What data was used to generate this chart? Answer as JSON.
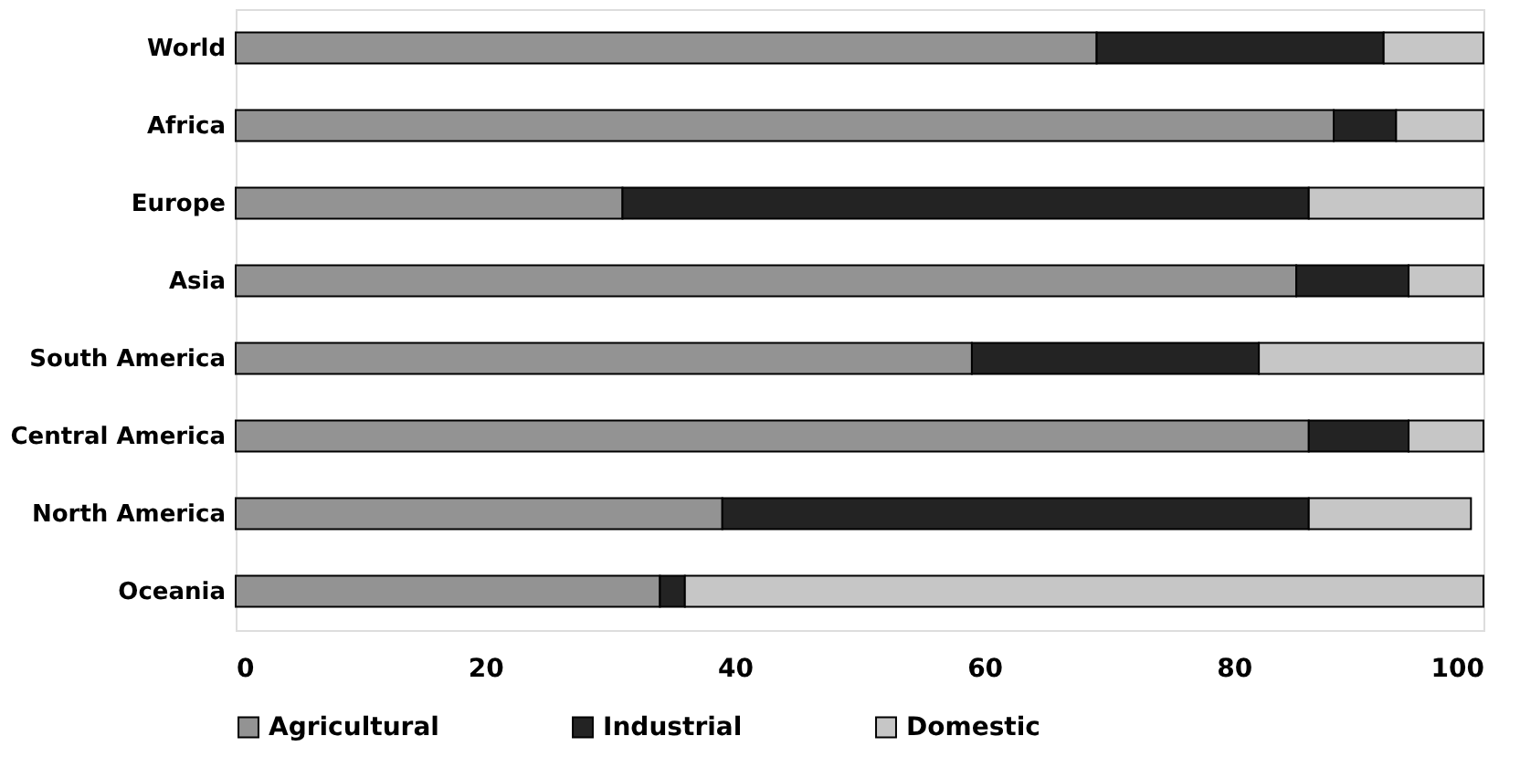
{
  "chart_data": {
    "type": "bar",
    "orientation": "horizontal",
    "stacked": true,
    "categories": [
      "World",
      "Africa",
      "Europe",
      "Asia",
      "South America",
      "Central America",
      "North America",
      "Oceania"
    ],
    "series": [
      {
        "name": "Agricultural",
        "color": "#939393",
        "values": [
          69,
          88,
          31,
          85,
          59,
          86,
          39,
          34
        ]
      },
      {
        "name": "Industrial",
        "color": "#232323",
        "values": [
          23,
          5,
          55,
          9,
          23,
          8,
          47,
          2
        ]
      },
      {
        "name": "Domestic",
        "color": "#c6c6c6",
        "values": [
          8,
          7,
          14,
          6,
          18,
          6,
          13,
          64
        ]
      }
    ],
    "xlim": [
      0,
      100
    ],
    "xticks": [
      0,
      20,
      40,
      60,
      80,
      100
    ],
    "grid": false,
    "legend": "bottom"
  }
}
